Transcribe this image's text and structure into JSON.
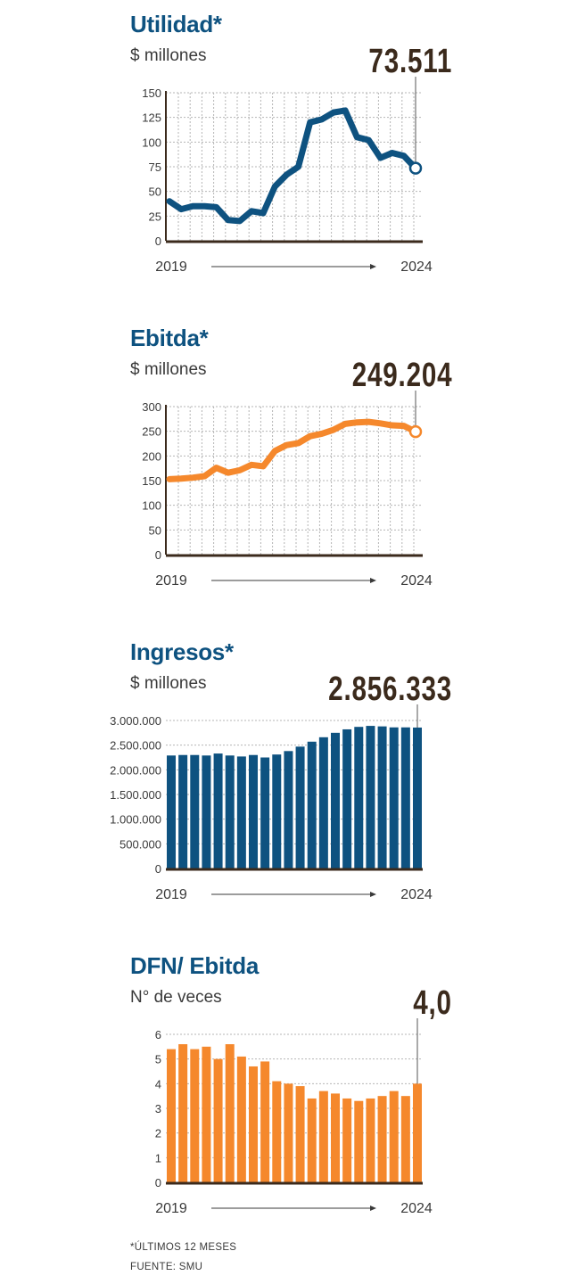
{
  "colors": {
    "navy": "#0e5280",
    "orange": "#f5882c",
    "dark": "#3b2a1c"
  },
  "chart_data": [
    {
      "type": "line",
      "title": "Utilidad*",
      "subtitle": "$ millones",
      "highlight": "73.511",
      "color": "#0e5280",
      "ylim": [
        0,
        150
      ],
      "yticks": [
        0,
        25,
        50,
        75,
        100,
        125,
        150
      ],
      "ytick_labels": [
        "0",
        "25",
        "50",
        "75",
        "100",
        "125",
        "150"
      ],
      "x_start": "2019",
      "x_end": "2024",
      "grid": "both",
      "values": [
        40,
        32,
        35,
        35,
        34,
        21,
        20,
        30,
        28,
        55,
        67,
        75,
        120,
        123,
        130,
        132,
        105,
        102,
        84,
        89,
        86,
        73.5
      ]
    },
    {
      "type": "line",
      "title": "Ebitda*",
      "subtitle": "$ millones",
      "highlight": "249.204",
      "color": "#f5882c",
      "ylim": [
        0,
        300
      ],
      "yticks": [
        0,
        50,
        100,
        150,
        200,
        250,
        300
      ],
      "ytick_labels": [
        "0",
        "50",
        "100",
        "150",
        "200",
        "250",
        "300"
      ],
      "x_start": "2019",
      "x_end": "2024",
      "grid": "both",
      "values": [
        153,
        154,
        156,
        159,
        176,
        166,
        171,
        182,
        179,
        210,
        222,
        226,
        240,
        245,
        253,
        265,
        268,
        269,
        266,
        262,
        261,
        249.2
      ]
    },
    {
      "type": "bar",
      "title": "Ingresos*",
      "subtitle": "$ millones",
      "highlight": "2.856.333",
      "color": "#0e5280",
      "ylim": [
        0,
        3000000
      ],
      "yticks": [
        0,
        500000,
        1000000,
        1500000,
        2000000,
        2500000,
        3000000
      ],
      "ytick_labels": [
        "0",
        "500.000",
        "1.000.000",
        "1.500.000",
        "2.000.000",
        "2.500.000",
        "3.000.000"
      ],
      "x_start": "2019",
      "x_end": "2024",
      "grid": "horizontal",
      "values": [
        2290000,
        2300000,
        2300000,
        2290000,
        2330000,
        2290000,
        2270000,
        2300000,
        2250000,
        2310000,
        2380000,
        2470000,
        2570000,
        2660000,
        2750000,
        2820000,
        2870000,
        2890000,
        2880000,
        2860000,
        2860000,
        2856333
      ]
    },
    {
      "type": "bar",
      "title": "DFN/ Ebitda",
      "subtitle": "N° de veces",
      "highlight": "4,0",
      "color": "#f5882c",
      "ylim": [
        0,
        6
      ],
      "yticks": [
        0,
        1,
        2,
        3,
        4,
        5,
        6
      ],
      "ytick_labels": [
        "0",
        "1",
        "2",
        "3",
        "4",
        "5",
        "6"
      ],
      "x_start": "2019",
      "x_end": "2024",
      "grid": "horizontal",
      "values": [
        5.4,
        5.6,
        5.4,
        5.5,
        5.0,
        5.6,
        5.1,
        4.7,
        4.9,
        4.1,
        4.0,
        3.9,
        3.4,
        3.7,
        3.6,
        3.4,
        3.3,
        3.4,
        3.5,
        3.7,
        3.5,
        4.0
      ]
    }
  ],
  "footnotes": {
    "note": "*ÚLTIMOS 12 MESES",
    "source": "FUENTE: SMU"
  }
}
